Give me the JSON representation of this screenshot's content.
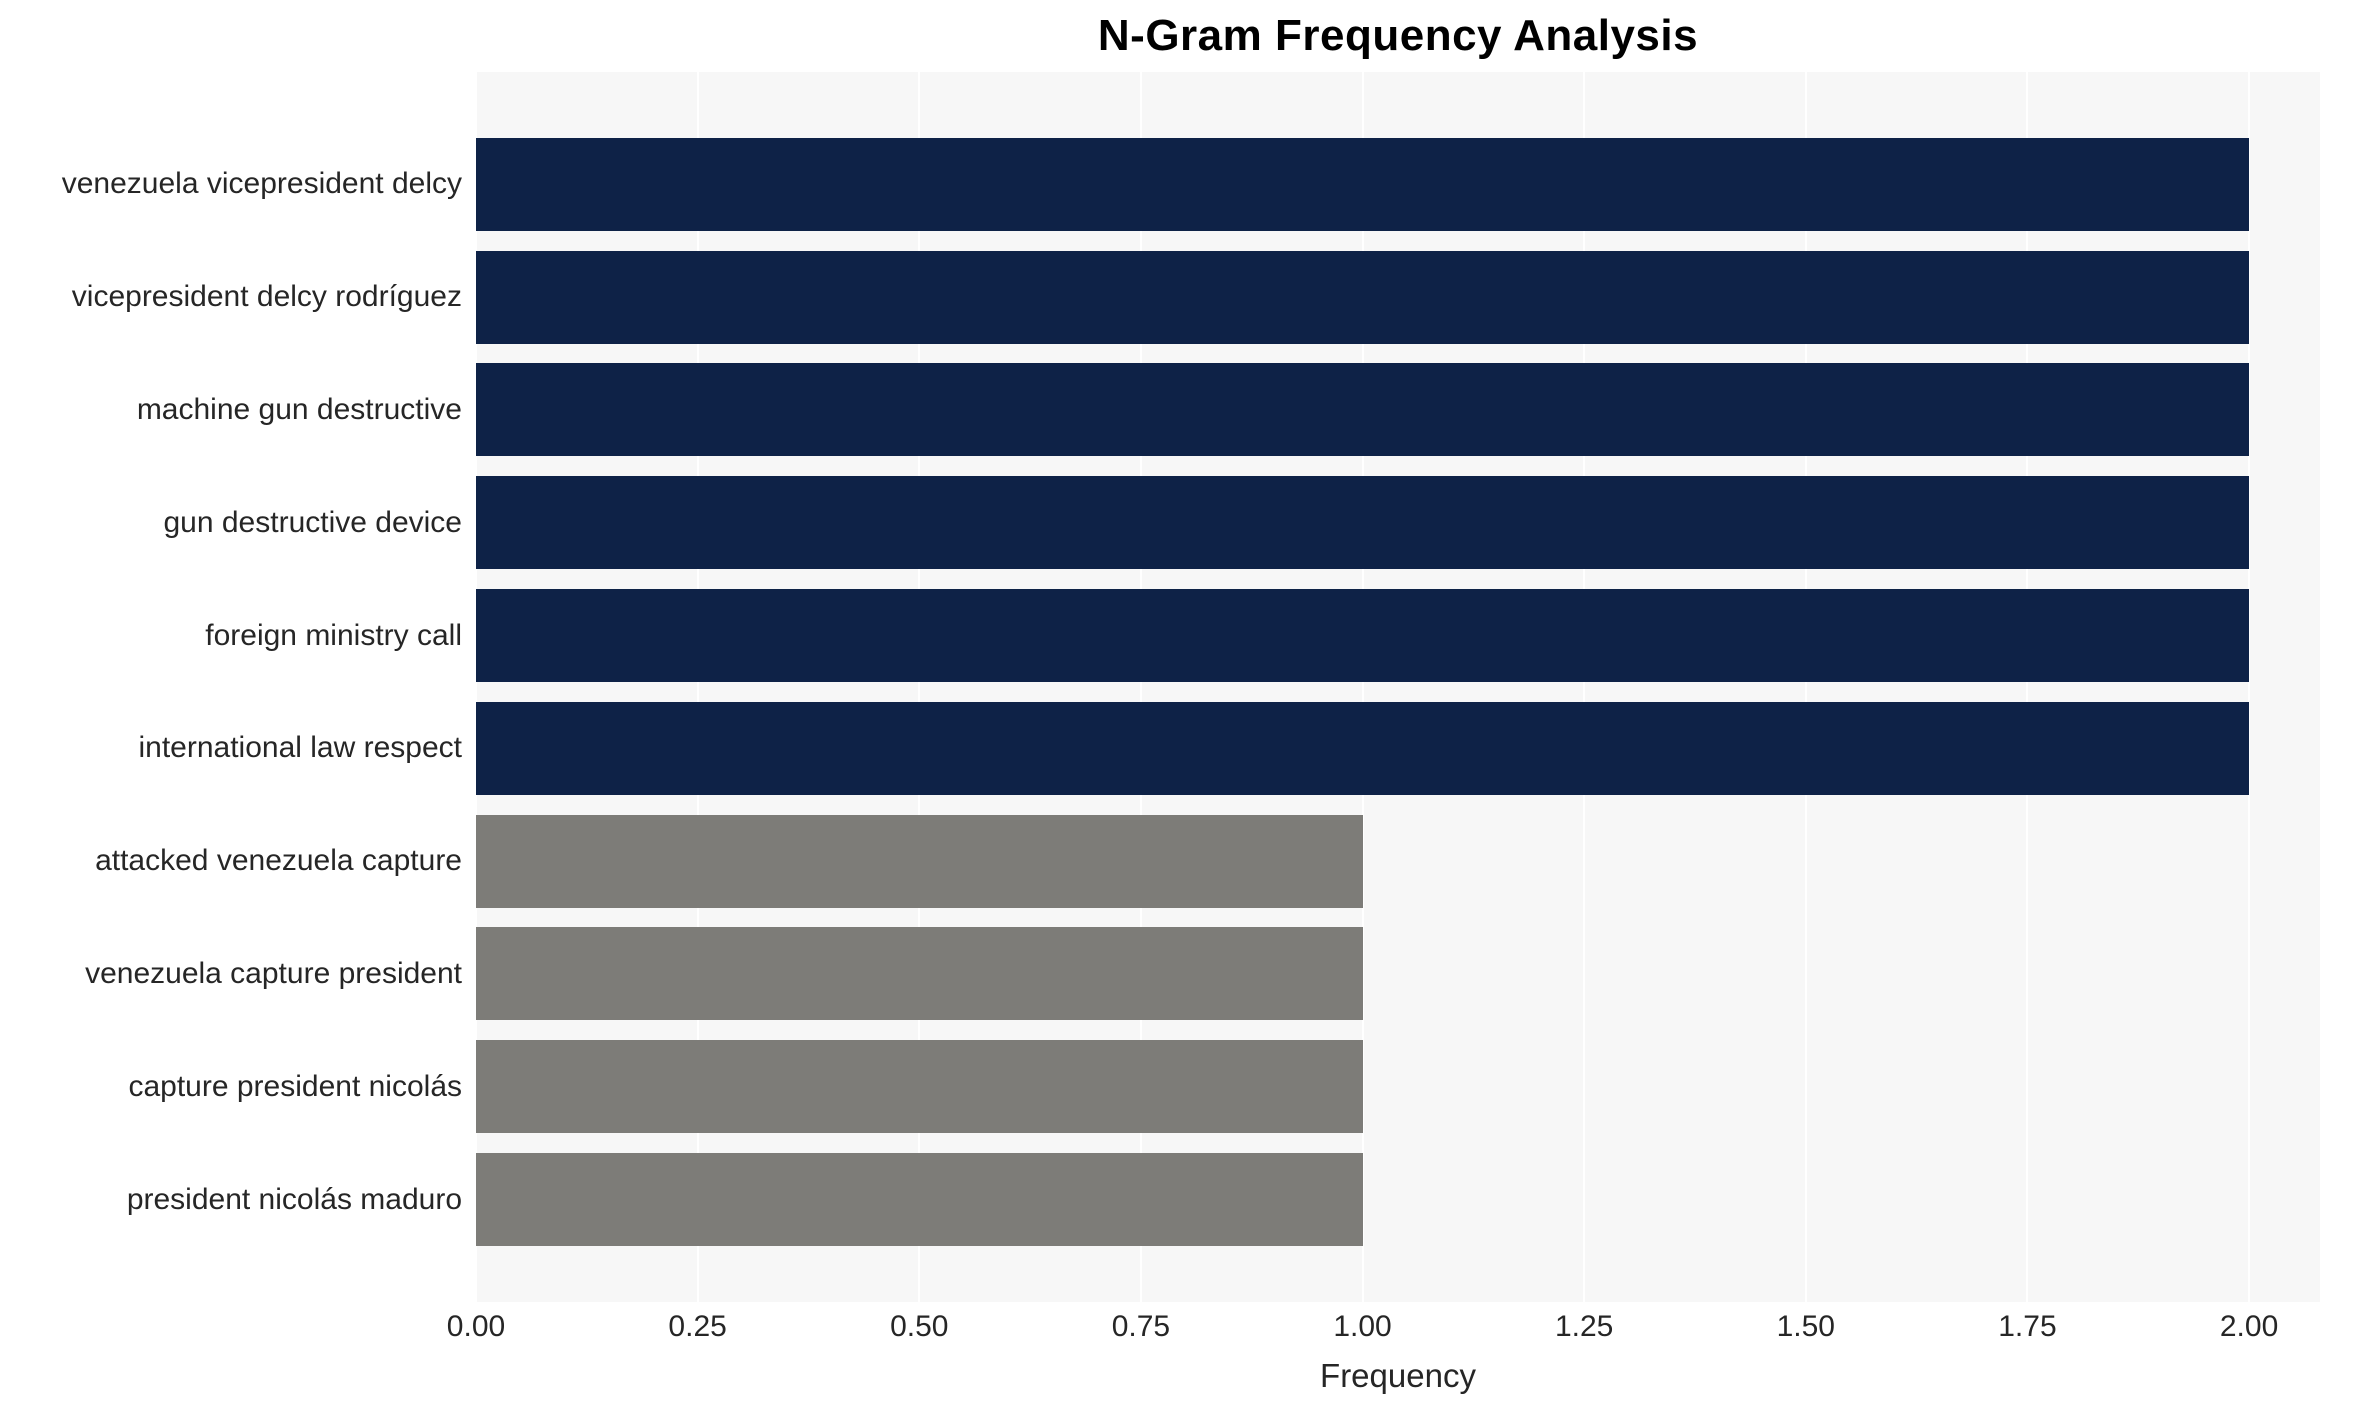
{
  "chart_data": {
    "type": "bar",
    "orientation": "horizontal",
    "title": "N-Gram Frequency Analysis",
    "xlabel": "Frequency",
    "categories": [
      "venezuela vicepresident delcy",
      "vicepresident delcy rodríguez",
      "machine gun destructive",
      "gun destructive device",
      "foreign ministry call",
      "international law respect",
      "attacked venezuela capture",
      "venezuela capture president",
      "capture president nicolás",
      "president nicolás maduro"
    ],
    "values": [
      2,
      2,
      2,
      2,
      2,
      2,
      1,
      1,
      1,
      1
    ],
    "bar_colors": [
      "#0e2247",
      "#0e2247",
      "#0e2247",
      "#0e2247",
      "#0e2247",
      "#0e2247",
      "#7d7c78",
      "#7d7c78",
      "#7d7c78",
      "#7d7c78"
    ],
    "xticks": [
      {
        "value": 0,
        "label": "0.00"
      },
      {
        "value": 0.25,
        "label": "0.25"
      },
      {
        "value": 0.5,
        "label": "0.50"
      },
      {
        "value": 0.75,
        "label": "0.75"
      },
      {
        "value": 1,
        "label": "1.00"
      },
      {
        "value": 1.25,
        "label": "1.25"
      },
      {
        "value": 1.5,
        "label": "1.50"
      },
      {
        "value": 1.75,
        "label": "1.75"
      },
      {
        "value": 2,
        "label": "2.00"
      }
    ],
    "xlim": [
      0,
      2.08
    ],
    "plot_background": "#f7f7f7",
    "gridline_color": "#ffffff",
    "grid": true,
    "legend_position": "none"
  }
}
